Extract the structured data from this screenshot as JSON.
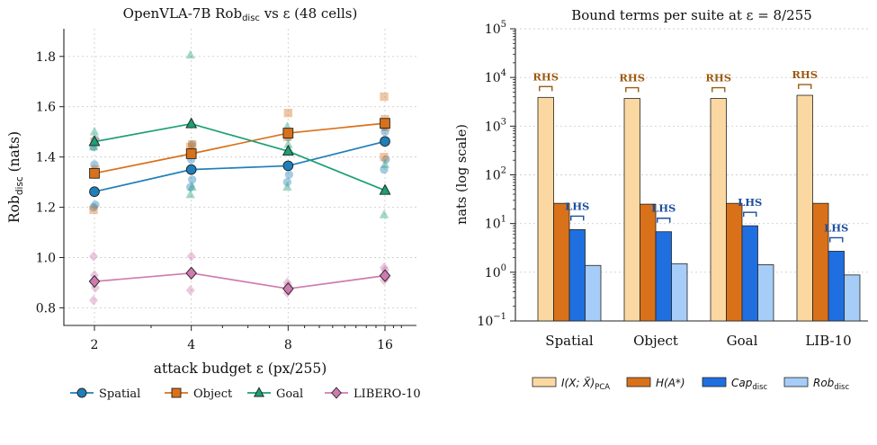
{
  "chart_data": [
    {
      "type": "line",
      "title_prefix": "OpenVLA-7B Rob",
      "title_sub": "disc",
      "title_suffix": " vs ε (48 cells)",
      "xlabel": "attack budget ε (px/255)",
      "ylabel_main": "Rob",
      "ylabel_sub": "disc",
      "ylabel_suffix": " (nats)",
      "x_scale": "log2",
      "x": [
        2,
        4,
        8,
        16
      ],
      "x_tick_labels": [
        "2",
        "4",
        "8",
        "16"
      ],
      "ylim": [
        0.73,
        1.91
      ],
      "y_ticks": [
        0.8,
        1.0,
        1.2,
        1.4,
        1.6,
        1.8
      ],
      "y_tick_labels": [
        "0.8",
        "1.0",
        "1.2",
        "1.4",
        "1.6",
        "1.8"
      ],
      "grid": true,
      "legend_placement": "bottom",
      "series": [
        {
          "name": "Spatial",
          "color": "#1f7fb8",
          "marker": "circle",
          "values": [
            1.262,
            1.35,
            1.365,
            1.462
          ],
          "cells": [
            [
              1.2,
              1.21,
              1.37,
              1.44,
              1.47
            ],
            [
              1.28,
              1.31,
              1.39,
              1.42,
              1.45
            ],
            [
              1.3,
              1.33,
              1.48,
              1.5
            ],
            [
              1.35,
              1.39,
              1.5,
              1.52
            ]
          ]
        },
        {
          "name": "Object",
          "color": "#d9711a",
          "marker": "square",
          "values": [
            1.335,
            1.413,
            1.495,
            1.534
          ],
          "cells": [
            [
              1.19,
              1.35,
              1.46
            ],
            [
              1.44,
              1.45
            ],
            [
              1.48,
              1.49,
              1.575
            ],
            [
              1.4,
              1.52,
              1.55,
              1.64
            ]
          ]
        },
        {
          "name": "Goal",
          "color": "#1c9e76",
          "marker": "triangle",
          "values": [
            1.461,
            1.532,
            1.423,
            1.267
          ],
          "cells": [
            [
              1.44,
              1.46,
              1.5
            ],
            [
              1.25,
              1.28,
              1.53,
              1.805
            ],
            [
              1.28,
              1.43,
              1.45,
              1.52
            ],
            [
              1.17,
              1.27,
              1.37
            ]
          ]
        },
        {
          "name": "LIBERO-10",
          "color": "#cf7baf",
          "marker": "diamond",
          "values": [
            0.905,
            0.938,
            0.876,
            0.928
          ],
          "cells": [
            [
              0.83,
              0.88,
              0.93,
              1.005
            ],
            [
              0.87,
              0.94,
              1.005
            ],
            [
              0.86,
              0.87,
              0.89,
              0.9
            ],
            [
              0.91,
              0.92,
              0.95,
              0.96
            ]
          ]
        }
      ]
    },
    {
      "type": "bar",
      "title": "Bound terms per suite at ε = 8/255",
      "ylabel": "nats (log scale)",
      "y_scale": "log10",
      "ylim": [
        0.1,
        100000
      ],
      "y_ticks": [
        0.1,
        1,
        10,
        100,
        1000,
        10000,
        100000
      ],
      "y_tick_labels": [
        [
          "10",
          "−1"
        ],
        [
          "10",
          "0"
        ],
        [
          "10",
          "1"
        ],
        [
          "10",
          "2"
        ],
        [
          "10",
          "3"
        ],
        [
          "10",
          "4"
        ],
        [
          "10",
          "5"
        ]
      ],
      "categories": [
        "Spatial",
        "Object",
        "Goal",
        "LIB-10"
      ],
      "legend_placement": "bottom",
      "series": [
        {
          "name_main": "I(X; X̃)",
          "name_sub": "PCA",
          "color": "#fbd8a2",
          "values": [
            3900,
            3700,
            3700,
            4300
          ]
        },
        {
          "name_main": "H(A*)",
          "name_sub": "",
          "color": "#d9711a",
          "values": [
            26,
            25,
            26,
            26
          ]
        },
        {
          "name_main": "Cap",
          "name_sub": "disc",
          "color": "#1f6fe0",
          "values": [
            7.5,
            6.8,
            9.0,
            2.7
          ]
        },
        {
          "name_main": "Rob",
          "name_sub": "disc",
          "color": "#a6cdf7",
          "values": [
            1.38,
            1.5,
            1.43,
            0.88
          ]
        }
      ],
      "annotations": {
        "rhs_label": "RHS",
        "rhs_color": "#9b5a12",
        "lhs_label": "LHS",
        "lhs_color": "#1a4f9c"
      }
    }
  ]
}
